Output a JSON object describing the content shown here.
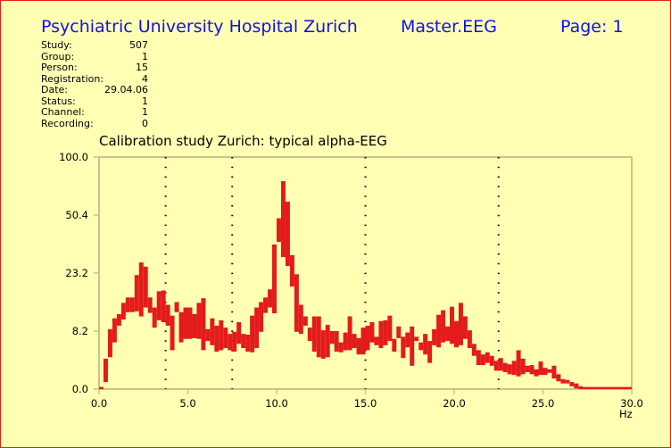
{
  "header": {
    "institution": "Psychiatric University Hospital Zurich",
    "program": "Master.EEG",
    "page": "Page: 1"
  },
  "info": [
    {
      "label": "Study:",
      "value": "507"
    },
    {
      "label": "Group:",
      "value": "1"
    },
    {
      "label": "Person:",
      "value": "15"
    },
    {
      "label": "Registration:",
      "value": "4"
    },
    {
      "label": "Date:",
      "value": "29.04.06"
    },
    {
      "label": "Status:",
      "value": "1"
    },
    {
      "label": "Channel:",
      "value": "1"
    },
    {
      "label": "Recording:",
      "value": "0"
    }
  ],
  "colors": {
    "background": "#ffffb4",
    "border": "#e8201c",
    "header": "#1010f0",
    "bars": "#e31b1b",
    "axis": "#c8c48a"
  },
  "chart_data": {
    "type": "bar",
    "title": "Calibration study Zurich: typical alpha-EEG",
    "xlabel": "Hz",
    "ylabel": "",
    "xlim": [
      0,
      30
    ],
    "ylim": [
      0,
      100
    ],
    "y_scale": "nonlinear (compressed)",
    "x_ticks": [
      "0.0",
      "5.0",
      "10.0",
      "15.0",
      "20.0",
      "25.0",
      "30.0"
    ],
    "y_ticks": [
      "0.0",
      "8.2",
      "23.2",
      "50.4",
      "100.0"
    ],
    "dotted_lines_hz": [
      3.75,
      7.5,
      15.0,
      22.5
    ],
    "grid": false,
    "bin_width_hz": 0.25,
    "bars_description": "each bar spans min–max value per frequency bin: [freq_hz, low, high]",
    "bars": [
      [
        0.0,
        0,
        0.3
      ],
      [
        0.25,
        1.0,
        4.3
      ],
      [
        0.5,
        4.5,
        8.7
      ],
      [
        0.75,
        6.6,
        11.5
      ],
      [
        1.0,
        9.6,
        12.6
      ],
      [
        1.25,
        11.2,
        15.5
      ],
      [
        1.5,
        13.1,
        16.9
      ],
      [
        1.75,
        13.1,
        16.9
      ],
      [
        2.0,
        13.3,
        22.7
      ],
      [
        2.25,
        12.0,
        28.2
      ],
      [
        2.5,
        14.3,
        26.2
      ],
      [
        2.75,
        12.9,
        16.9
      ],
      [
        3.0,
        9.1,
        14.3
      ],
      [
        3.25,
        11.0,
        18.5
      ],
      [
        3.5,
        10.5,
        18.7
      ],
      [
        3.75,
        9.6,
        15.0
      ],
      [
        4.0,
        5.5,
        12.2
      ],
      [
        4.25,
        13.1,
        15.7
      ],
      [
        4.5,
        6.6,
        13.1
      ],
      [
        4.75,
        7.1,
        14.3
      ],
      [
        5.0,
        7.1,
        14.3
      ],
      [
        5.25,
        7.2,
        12.6
      ],
      [
        5.5,
        7.1,
        15.5
      ],
      [
        5.75,
        5.5,
        16.7
      ],
      [
        6.0,
        6.8,
        8.7
      ],
      [
        6.25,
        6.2,
        11.5
      ],
      [
        6.5,
        5.3,
        9.6
      ],
      [
        6.75,
        5.5,
        11.0
      ],
      [
        7.0,
        5.8,
        9.1
      ],
      [
        7.25,
        5.5,
        7.8
      ],
      [
        7.5,
        5.3,
        8.1
      ],
      [
        7.75,
        6.4,
        10.5
      ],
      [
        8.0,
        5.8,
        7.8
      ],
      [
        8.25,
        5.3,
        7.7
      ],
      [
        8.5,
        5.2,
        12.2
      ],
      [
        8.75,
        5.8,
        14.3
      ],
      [
        9.0,
        8.1,
        15.7
      ],
      [
        9.25,
        12.9,
        16.9
      ],
      [
        9.5,
        14.3,
        19.0
      ],
      [
        9.75,
        12.8,
        36.6
      ],
      [
        10.0,
        37.8,
        48.9
      ],
      [
        10.25,
        30.7,
        79.4
      ],
      [
        10.5,
        26.5,
        61.8
      ],
      [
        10.75,
        19.7,
        31.6
      ],
      [
        11.0,
        8.1,
        22.9
      ],
      [
        11.25,
        7.8,
        15.0
      ],
      [
        11.5,
        9.6,
        12.0
      ],
      [
        11.75,
        6.8,
        9.1
      ],
      [
        12.0,
        5.3,
        12.0
      ],
      [
        12.25,
        4.5,
        12.0
      ],
      [
        12.5,
        4.3,
        8.4
      ],
      [
        12.75,
        4.5,
        9.8
      ],
      [
        13.0,
        6.4,
        8.2
      ],
      [
        13.25,
        5.3,
        8.2
      ],
      [
        13.5,
        5.2,
        6.6
      ],
      [
        13.75,
        5.5,
        8.0
      ],
      [
        14.0,
        5.5,
        12.0
      ],
      [
        14.25,
        5.8,
        7.8
      ],
      [
        14.5,
        4.9,
        7.2
      ],
      [
        14.75,
        4.9,
        9.1
      ],
      [
        15.0,
        5.5,
        9.6
      ],
      [
        15.25,
        6.6,
        10.5
      ],
      [
        15.5,
        6.2,
        7.4
      ],
      [
        15.75,
        5.8,
        10.8
      ],
      [
        16.0,
        6.2,
        11.0
      ],
      [
        16.25,
        6.8,
        12.2
      ],
      [
        16.5,
        5.3,
        7.1
      ],
      [
        16.75,
        7.2,
        9.4
      ],
      [
        17.0,
        4.4,
        7.4
      ],
      [
        17.25,
        5.9,
        8.0
      ],
      [
        17.5,
        3.3,
        9.4
      ],
      [
        17.75,
        6.8,
        7.4
      ],
      [
        18.0,
        5.5,
        6.6
      ],
      [
        18.25,
        4.9,
        7.8
      ],
      [
        18.5,
        3.7,
        6.8
      ],
      [
        18.75,
        6.2,
        8.7
      ],
      [
        19.0,
        5.9,
        12.4
      ],
      [
        19.25,
        6.6,
        13.6
      ],
      [
        19.5,
        6.8,
        9.4
      ],
      [
        19.75,
        6.4,
        14.5
      ],
      [
        20.0,
        5.9,
        10.8
      ],
      [
        20.25,
        6.2,
        15.5
      ],
      [
        20.5,
        7.1,
        12.0
      ],
      [
        20.75,
        5.8,
        8.4
      ],
      [
        21.0,
        4.7,
        6.4
      ],
      [
        21.25,
        3.4,
        5.5
      ],
      [
        21.5,
        3.4,
        4.9
      ],
      [
        21.75,
        3.7,
        5.2
      ],
      [
        22.0,
        3.3,
        4.7
      ],
      [
        22.25,
        2.6,
        4.0
      ],
      [
        22.5,
        2.6,
        4.4
      ],
      [
        22.75,
        2.4,
        3.7
      ],
      [
        23.0,
        2.1,
        3.5
      ],
      [
        23.25,
        2.0,
        4.0
      ],
      [
        23.5,
        1.8,
        5.5
      ],
      [
        23.75,
        2.1,
        4.3
      ],
      [
        24.0,
        2.4,
        3.3
      ],
      [
        24.25,
        2.1,
        3.4
      ],
      [
        24.5,
        1.8,
        2.8
      ],
      [
        24.75,
        2.0,
        3.9
      ],
      [
        25.0,
        2.0,
        3.0
      ],
      [
        25.25,
        2.3,
        2.8
      ],
      [
        25.5,
        1.5,
        3.3
      ],
      [
        25.75,
        1.1,
        2.1
      ],
      [
        26.0,
        0.8,
        1.4
      ],
      [
        26.25,
        0.8,
        1.3
      ],
      [
        26.5,
        0.4,
        1.0
      ],
      [
        26.75,
        0.1,
        0.8
      ],
      [
        27.0,
        0,
        0.4
      ],
      [
        27.25,
        0,
        0.3
      ],
      [
        27.5,
        0,
        0.3
      ],
      [
        27.75,
        0,
        0.3
      ],
      [
        28.0,
        0,
        0.3
      ],
      [
        28.25,
        0,
        0.3
      ],
      [
        28.5,
        0,
        0.3
      ],
      [
        28.75,
        0,
        0.3
      ],
      [
        29.0,
        0,
        0.3
      ],
      [
        29.25,
        0,
        0.3
      ],
      [
        29.5,
        0,
        0.3
      ],
      [
        29.75,
        0,
        0.3
      ]
    ]
  }
}
